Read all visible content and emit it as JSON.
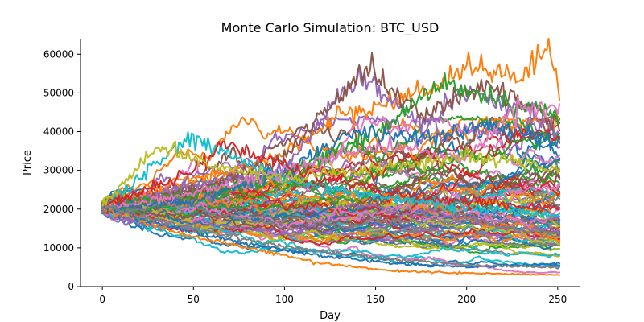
{
  "chart_data": {
    "type": "line",
    "title": "Monte Carlo Simulation: BTC_USD",
    "xlabel": "Day",
    "ylabel": "Price",
    "xlim": [
      -12,
      262
    ],
    "ylim": [
      0,
      64000
    ],
    "xticks": [
      0,
      50,
      100,
      150,
      200,
      250
    ],
    "xtick_labels": [
      "0",
      "50",
      "100",
      "150",
      "200",
      "250"
    ],
    "yticks": [
      0,
      10000,
      20000,
      30000,
      40000,
      50000,
      60000
    ],
    "ytick_labels": [
      "0",
      "10000",
      "20000",
      "30000",
      "40000",
      "50000",
      "60000"
    ],
    "grid": false,
    "legend": "none",
    "days": 252,
    "start_price": 20500,
    "palette": [
      "#1f77b4",
      "#ff7f0e",
      "#2ca02c",
      "#d62728",
      "#9467bd",
      "#8c564b",
      "#e377c2",
      "#7f7f7f",
      "#bcbd22",
      "#17becf"
    ],
    "num_series": 100,
    "highlighted_paths": [
      {
        "color": "#ff7f0e",
        "x": [
          0,
          50,
          100,
          130,
          175,
          200,
          230,
          245,
          251
        ],
        "y": [
          20500,
          27000,
          34000,
          44000,
          50000,
          56000,
          54000,
          61000,
          49000
        ]
      },
      {
        "color": "#9467bd",
        "x": [
          0,
          50,
          100,
          140,
          175,
          200,
          230,
          251
        ],
        "y": [
          20500,
          26000,
          30000,
          55000,
          42000,
          50000,
          46000,
          40000
        ]
      },
      {
        "color": "#8c564b",
        "x": [
          0,
          50,
          100,
          145,
          175,
          210,
          240,
          251
        ],
        "y": [
          20500,
          25000,
          33000,
          57000,
          44000,
          52000,
          46000,
          42000
        ]
      },
      {
        "color": "#2ca02c",
        "x": [
          0,
          50,
          100,
          150,
          185,
          220,
          251
        ],
        "y": [
          20500,
          24000,
          29000,
          40000,
          52000,
          48000,
          44000
        ]
      },
      {
        "color": "#17becf",
        "x": [
          0,
          25,
          48,
          75,
          100,
          130,
          175,
          210,
          251
        ],
        "y": [
          20500,
          30000,
          38500,
          33000,
          28000,
          25000,
          22000,
          20000,
          18000
        ]
      },
      {
        "color": "#1f77b4",
        "x": [
          0,
          50,
          100,
          140,
          175,
          210,
          251
        ],
        "y": [
          20500,
          22000,
          30000,
          40000,
          38000,
          42000,
          37000
        ]
      },
      {
        "color": "#e377c2",
        "x": [
          0,
          50,
          100,
          150,
          200,
          230,
          251
        ],
        "y": [
          20500,
          24000,
          30000,
          36000,
          33000,
          47000,
          45000
        ]
      },
      {
        "color": "#d62728",
        "x": [
          0,
          50,
          68,
          90,
          120,
          160,
          200,
          251
        ],
        "y": [
          20500,
          30000,
          37000,
          33000,
          28000,
          24000,
          22000,
          20000
        ]
      },
      {
        "color": "#bcbd22",
        "x": [
          0,
          30,
          60,
          100,
          150,
          200,
          251
        ],
        "y": [
          20500,
          36000,
          31000,
          28000,
          30000,
          34000,
          30000
        ]
      },
      {
        "color": "#ff7f0e",
        "x": [
          0,
          40,
          80,
          120,
          160,
          200,
          251
        ],
        "y": [
          20500,
          14000,
          10000,
          6000,
          4000,
          3500,
          3000
        ]
      },
      {
        "color": "#1f77b4",
        "x": [
          0,
          40,
          80,
          120,
          160,
          200,
          251
        ],
        "y": [
          20500,
          15000,
          11000,
          8000,
          6000,
          5000,
          6000
        ]
      },
      {
        "color": "#7f7f7f",
        "x": [
          0,
          40,
          80,
          120,
          160,
          200,
          251
        ],
        "y": [
          20500,
          16000,
          12000,
          9000,
          7000,
          5500,
          5000
        ]
      }
    ]
  }
}
